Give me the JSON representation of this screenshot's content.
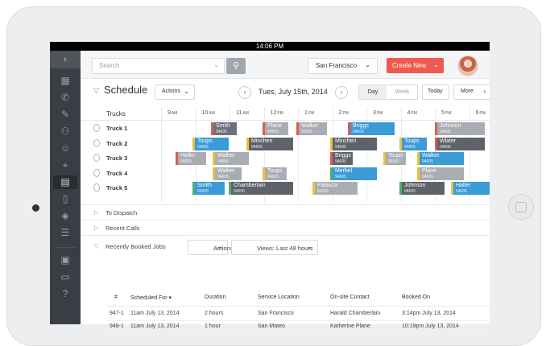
{
  "status_time": "14:06 PM",
  "sidebar": {
    "toggle": "›",
    "icons": [
      "grid-icon",
      "phone-icon",
      "edit-icon",
      "users-icon",
      "user-icon",
      "location-icon",
      "calendar-icon",
      "document-icon",
      "layers-icon",
      "list-icon",
      "book-icon",
      "card-icon",
      "help-icon"
    ]
  },
  "topbar": {
    "search_placeholder": "Search",
    "location": "San Francisco",
    "create_label": "Create New"
  },
  "schedule": {
    "title": "Schedule",
    "actions_label": "Actions",
    "date": "Tues, July 15th, 2014",
    "day_label": "Day",
    "week_label": "Week",
    "today_label": "Today",
    "more_label": "More",
    "trucks_header": "Trucks",
    "hours": [
      "9 AM",
      "10 AM",
      "11 AM",
      "12 PM",
      "1 PM",
      "2 PM",
      "3 PM",
      "4 PM",
      "5 PM",
      "6 PM"
    ],
    "hour_short": [
      "9",
      "10",
      "11",
      "12",
      "1",
      "2",
      "3",
      "4",
      "5",
      "6"
    ],
    "hour_suffix": [
      "AM",
      "AM",
      "AM",
      "PM",
      "PM",
      "PM",
      "PM",
      "PM",
      "PM",
      "PM"
    ],
    "trucks": [
      {
        "name": "Truck 1",
        "jobs": [
          {
            "name": "Smith",
            "zip": "94605",
            "color": "#6b7079",
            "edge": "#e05a50"
          },
          {
            "name": "Plane",
            "zip": "94605",
            "color": "#a9adb3",
            "edge": "#e05a50"
          },
          {
            "name": "Walker",
            "zip": "94605",
            "color": "#a9adb3",
            "edge": "#e05a50"
          },
          {
            "name": "Briggs",
            "zip": "94605",
            "color": "#3b9bd6",
            "edge": "#e05a50"
          },
          {
            "name": "Johnson",
            "zip": "94605",
            "color": "#a9adb3",
            "edge": "#e05a50"
          }
        ]
      },
      {
        "name": "Truck 2",
        "jobs": [
          {
            "name": "Toups",
            "zip": "94605",
            "color": "#3b9bd6",
            "edge": "#e9c33a"
          },
          {
            "name": "Minchen",
            "zip": "94605",
            "color": "#5e636b",
            "edge": "#e9c33a"
          },
          {
            "name": "Minchen",
            "zip": "94605",
            "color": "#5e636b",
            "edge": "#e9c33a"
          },
          {
            "name": "Toups",
            "zip": "94605",
            "color": "#3b9bd6",
            "edge": "#e9c33a"
          },
          {
            "name": "Wlater",
            "zip": "94605",
            "color": "#5e636b",
            "edge": "#e05a50"
          }
        ]
      },
      {
        "name": "Truck 3",
        "jobs": [
          {
            "name": "Haller",
            "zip": "94605",
            "color": "#a9adb3",
            "edge": "#e05a50"
          },
          {
            "name": "Walker",
            "zip": "94605",
            "color": "#a9adb3",
            "edge": "#e9c33a"
          },
          {
            "name": "Briggs",
            "zip": "94605",
            "color": "#5e636b",
            "edge": "#e05a50"
          },
          {
            "name": "Toups",
            "zip": "94605",
            "color": "#a9adb3",
            "edge": "#e9c33a"
          },
          {
            "name": "Walker",
            "zip": "94605",
            "color": "#3b9bd6",
            "edge": "#e9c33a"
          }
        ]
      },
      {
        "name": "Truck 4",
        "jobs": [
          {
            "name": "Walker",
            "zip": "94605",
            "color": "#a9adb3",
            "edge": "#e9c33a"
          },
          {
            "name": "Toups",
            "zip": "94605",
            "color": "#a9adb3",
            "edge": "#e9c33a"
          },
          {
            "name": "Merkel",
            "zip": "94605",
            "color": "#3b9bd6",
            "edge": "#4caf6a"
          },
          {
            "name": "Plane",
            "zip": "94605",
            "color": "#a9adb3",
            "edge": "#e9c33a"
          }
        ]
      },
      {
        "name": "Truck 5",
        "jobs": [
          {
            "name": "Smith",
            "zip": "94605",
            "color": "#3b9bd6",
            "edge": "#4caf6a"
          },
          {
            "name": "Chamberlain",
            "zip": "94605",
            "color": "#5e636b",
            "edge": "#4caf6a"
          },
          {
            "name": "Palasca",
            "zip": "94605",
            "color": "#a9adb3",
            "edge": "#e9c33a"
          },
          {
            "name": "Johnson",
            "zip": "94605",
            "color": "#5e636b",
            "edge": "#4caf6a"
          },
          {
            "name": "Haller",
            "zip": "94605",
            "color": "#3b9bd6",
            "edge": "#e9c33a"
          }
        ]
      }
    ]
  },
  "sections": {
    "dispatch": "To Dispatch",
    "recent_calls": "Recent Calls",
    "recently_booked": "Recently Booked Jobs",
    "actions_label": "Actions",
    "views_label": "Views:  Last 48 hours"
  },
  "jobs_table": {
    "columns": [
      "#",
      "Scheduled For",
      "Duration",
      "Service Location",
      "On-site Contact",
      "Booked On"
    ],
    "sort_marker": "▾",
    "rows": [
      [
        "947-1",
        "11am July 13, 2014",
        "2 hours",
        "San Francisco",
        "Harald Chamberlain",
        "3:14pm July 13, 2014"
      ],
      [
        "948-1",
        "11am July 13, 2014",
        "1 hour",
        "San Mateo",
        "Katherine Plane",
        "10:19pm July 13, 2014"
      ]
    ]
  },
  "colors": {
    "accent": "#ef5a50",
    "sidebar": "#3a3d43",
    "job_blue": "#3b9bd6",
    "job_dark": "#5e636b",
    "job_light": "#a9adb3"
  }
}
